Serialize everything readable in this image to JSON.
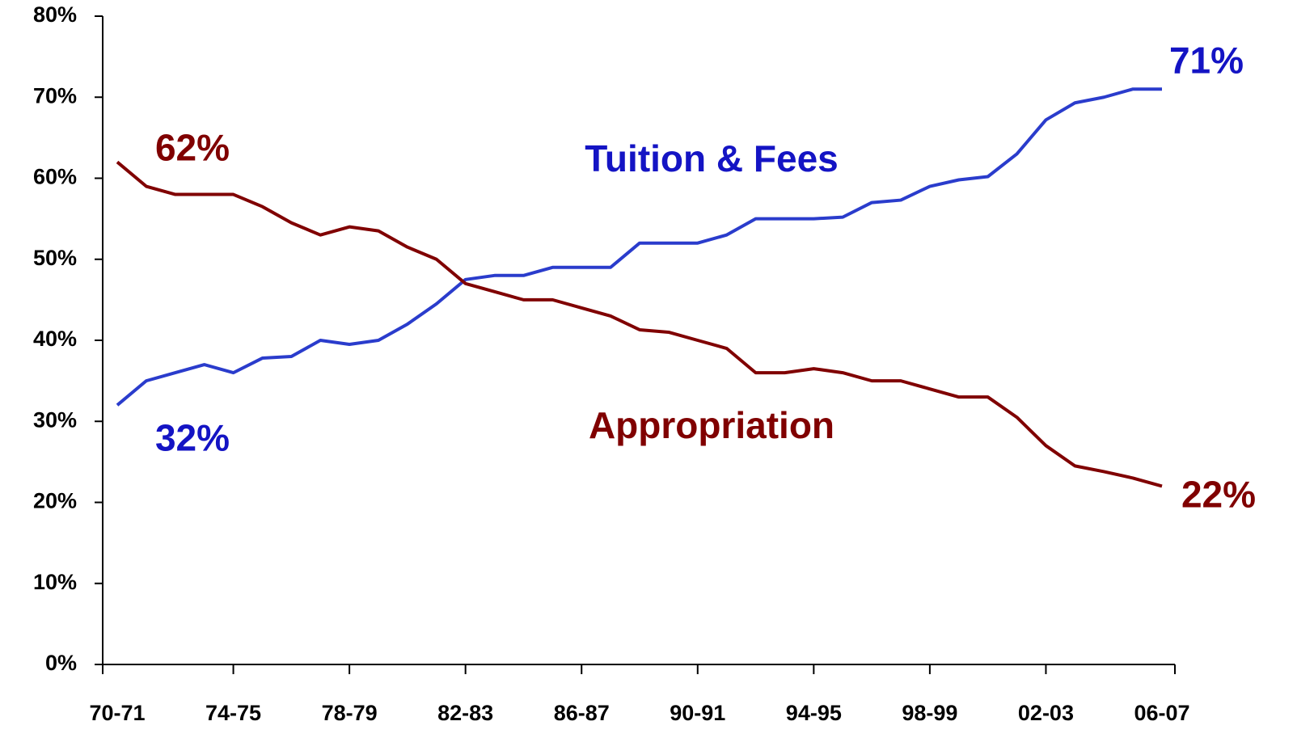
{
  "chart_data": {
    "type": "line",
    "categories": [
      "70-71",
      null,
      null,
      null,
      "74-75",
      null,
      null,
      null,
      "78-79",
      null,
      null,
      null,
      "82-83",
      null,
      null,
      null,
      "86-87",
      null,
      null,
      null,
      "90-91",
      null,
      null,
      null,
      "94-95",
      null,
      null,
      null,
      "98-99",
      null,
      null,
      null,
      "02-03",
      null,
      null,
      null,
      "06-07"
    ],
    "series": [
      {
        "name": "Tuition & Fees",
        "color": "#2a3ccc",
        "label_color": "#1414c4",
        "values": [
          32,
          35,
          36,
          37,
          36,
          37.8,
          38,
          40,
          39.5,
          40,
          42,
          44.5,
          47.5,
          48,
          48,
          49,
          49,
          49,
          52,
          52,
          52,
          53,
          55,
          55,
          55,
          55.2,
          57,
          57.3,
          59,
          59.8,
          60.2,
          63,
          67.2,
          69.3,
          70,
          71,
          71
        ],
        "value_labels": [
          "32%",
          null,
          null,
          null,
          null,
          null,
          null,
          null,
          null,
          null,
          null,
          null,
          null,
          null,
          null,
          null,
          null,
          null,
          null,
          null,
          null,
          null,
          null,
          null,
          null,
          null,
          null,
          null,
          null,
          null,
          null,
          null,
          null,
          null,
          null,
          null,
          "71%"
        ]
      },
      {
        "name": "Appropriation",
        "color": "#800000",
        "label_color": "#800000",
        "values": [
          62,
          59,
          58,
          58,
          58,
          56.5,
          54.5,
          53,
          54,
          53.5,
          51.5,
          50,
          47,
          46,
          45,
          45,
          44,
          43,
          41.3,
          41,
          40,
          39,
          36,
          36,
          36.5,
          36,
          35,
          35,
          34,
          33,
          33,
          30.5,
          27,
          24.5,
          23.8,
          23,
          22
        ],
        "value_labels": [
          "62%",
          null,
          null,
          null,
          null,
          null,
          null,
          null,
          null,
          null,
          null,
          null,
          null,
          null,
          null,
          null,
          null,
          null,
          null,
          null,
          null,
          null,
          null,
          null,
          null,
          null,
          null,
          null,
          null,
          null,
          null,
          null,
          null,
          null,
          null,
          null,
          "22%"
        ]
      }
    ],
    "ylim": [
      0,
      80
    ],
    "yticks": [
      {
        "value": 0,
        "label": "0%"
      },
      {
        "value": 10,
        "label": "10%"
      },
      {
        "value": 20,
        "label": "20%"
      },
      {
        "value": 30,
        "label": "30%"
      },
      {
        "value": 40,
        "label": "40%"
      },
      {
        "value": 50,
        "label": "50%"
      },
      {
        "value": 60,
        "label": "60%"
      },
      {
        "value": 70,
        "label": "70%"
      },
      {
        "value": 80,
        "label": "80%"
      }
    ],
    "grid": false
  }
}
